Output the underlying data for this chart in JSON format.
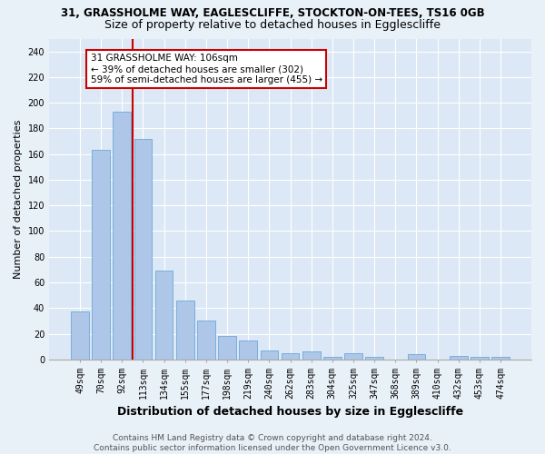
{
  "title": "31, GRASSHOLME WAY, EAGLESCLIFFE, STOCKTON-ON-TEES, TS16 0GB",
  "subtitle": "Size of property relative to detached houses in Egglescliffe",
  "xlabel": "Distribution of detached houses by size in Egglescliffe",
  "ylabel": "Number of detached properties",
  "categories": [
    "49sqm",
    "70sqm",
    "92sqm",
    "113sqm",
    "134sqm",
    "155sqm",
    "177sqm",
    "198sqm",
    "219sqm",
    "240sqm",
    "262sqm",
    "283sqm",
    "304sqm",
    "325sqm",
    "347sqm",
    "368sqm",
    "389sqm",
    "410sqm",
    "432sqm",
    "453sqm",
    "474sqm"
  ],
  "values": [
    37,
    163,
    193,
    172,
    69,
    46,
    30,
    18,
    15,
    7,
    5,
    6,
    2,
    5,
    2,
    0,
    4,
    0,
    3,
    2,
    2
  ],
  "bar_color": "#aec6e8",
  "bar_edge_color": "#5a9fd4",
  "vline_x": 2.5,
  "vline_color": "#cc0000",
  "annotation_line1": "31 GRASSHOLME WAY: 106sqm",
  "annotation_line2": "← 39% of detached houses are smaller (302)",
  "annotation_line3": "59% of semi-detached houses are larger (455) →",
  "annotation_box_color": "#ffffff",
  "annotation_box_edge_color": "#cc0000",
  "ylim": [
    0,
    250
  ],
  "yticks": [
    0,
    20,
    40,
    60,
    80,
    100,
    120,
    140,
    160,
    180,
    200,
    220,
    240
  ],
  "footnote": "Contains HM Land Registry data © Crown copyright and database right 2024.\nContains public sector information licensed under the Open Government Licence v3.0.",
  "background_color": "#e8f0f8",
  "plot_background_color": "#dce8f5",
  "grid_color": "#ffffff",
  "title_fontsize": 8.5,
  "subtitle_fontsize": 9,
  "xlabel_fontsize": 9,
  "ylabel_fontsize": 8,
  "tick_fontsize": 7,
  "annotation_fontsize": 7.5,
  "footnote_fontsize": 6.5
}
